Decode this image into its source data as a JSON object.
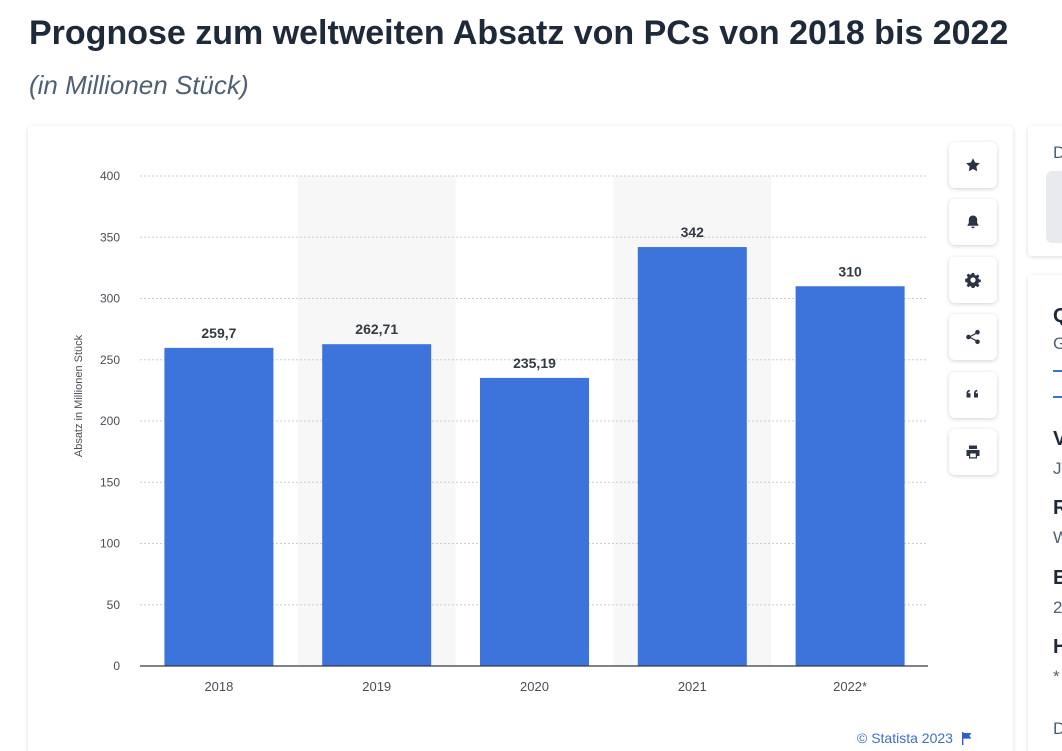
{
  "header": {
    "title": "Prognose zum weltweiten Absatz von PCs von 2018 bis 2022",
    "subtitle": "(in Millionen Stück)"
  },
  "chart_data": {
    "type": "bar",
    "title": "Prognose zum weltweiten Absatz von PCs von 2018 bis 2022",
    "subtitle": "(in Millionen Stück)",
    "categories": [
      "2018",
      "2019",
      "2020",
      "2021",
      "2022*"
    ],
    "values": [
      259.7,
      262.71,
      235.19,
      342,
      310
    ],
    "value_labels": [
      "259,7",
      "262,71",
      "235,19",
      "342",
      "310"
    ],
    "xlabel": "",
    "ylabel": "Absatz in Millionen Stück",
    "ylim": [
      0,
      400
    ],
    "yticks": [
      0,
      50,
      100,
      150,
      200,
      250,
      300,
      350,
      400
    ],
    "grid": true,
    "bar_color": "#3d74db"
  },
  "toolbar": {
    "items": [
      {
        "name": "star-icon"
      },
      {
        "name": "bell-icon"
      },
      {
        "name": "gear-icon"
      },
      {
        "name": "share-icon"
      },
      {
        "name": "quote-icon"
      },
      {
        "name": "print-icon"
      }
    ]
  },
  "credit": {
    "text": "© Statista 2023",
    "icon": "flag-icon"
  },
  "side_panel": {
    "top_letter": "D",
    "heading_letter": "Q",
    "heading_sub": "G",
    "rows": [
      {
        "head": "V",
        "value": "Ju"
      },
      {
        "head": "R",
        "value": "W"
      },
      {
        "head": "E",
        "value": "2"
      },
      {
        "head": "H",
        "value": "*"
      }
    ],
    "bottom_letter": "D"
  },
  "colors": {
    "accent": "#3d74db",
    "title": "#1e2a3a",
    "subtitle": "#4f6075",
    "band": "#f7f7f8"
  }
}
